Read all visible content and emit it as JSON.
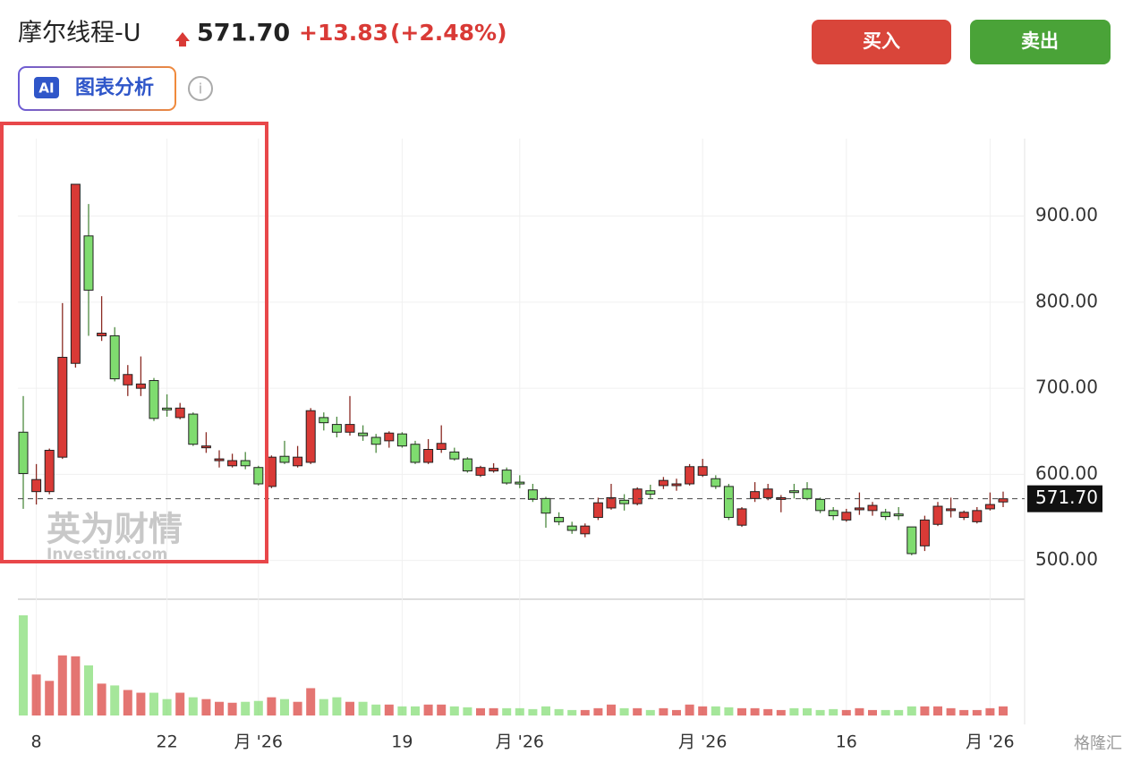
{
  "header": {
    "title": "摩尔线程-U",
    "price": "571.70",
    "change": "+13.83",
    "change_pct": "(+2.48%)",
    "ai_badge": "AI",
    "ai_button": "图表分析",
    "buy": "买入",
    "sell": "卖出"
  },
  "watermark": {
    "brand": "英为财情",
    "site": "Investing.com"
  },
  "source": "格隆汇",
  "chart_data": {
    "type": "candlestick",
    "categories": [
      null,
      "8",
      null,
      null,
      null,
      null,
      null,
      null,
      null,
      null,
      null,
      "22",
      null,
      null,
      null,
      null,
      null,
      null,
      "月 '26",
      null,
      null,
      null,
      null,
      null,
      null,
      null,
      null,
      null,
      null,
      "19",
      null,
      null,
      null,
      null,
      null,
      null,
      null,
      null,
      "月 '26",
      null,
      null,
      null,
      null,
      null,
      null,
      null,
      null,
      null,
      null,
      null,
      null,
      null,
      "月 '26",
      null,
      null,
      null,
      null,
      null,
      null,
      null,
      null,
      null,
      null,
      "16",
      null,
      null,
      null,
      null,
      null,
      null,
      null,
      null,
      null,
      null,
      "月 '26",
      null
    ],
    "open": [
      649,
      580,
      580,
      620,
      729,
      877,
      761,
      761,
      704,
      700,
      709,
      677,
      666,
      670,
      631,
      616,
      610,
      616,
      608,
      586,
      621,
      610,
      614,
      666,
      658,
      649,
      648,
      643,
      639,
      647,
      635,
      614,
      629,
      626,
      618,
      599,
      604,
      605,
      591,
      582,
      572,
      550,
      540,
      531,
      550,
      561,
      570,
      566,
      581,
      587,
      587,
      589,
      599,
      595,
      586,
      541,
      572,
      573,
      571,
      581,
      583,
      571,
      558,
      547,
      559,
      558,
      556,
      554,
      539,
      517,
      542,
      558,
      550,
      545,
      560,
      568
    ],
    "high": [
      691,
      612,
      630,
      799,
      937,
      914,
      807,
      771,
      727,
      737,
      712,
      693,
      683,
      672,
      649,
      628,
      624,
      626,
      610,
      622,
      639,
      633,
      677,
      672,
      667,
      691,
      657,
      647,
      650,
      649,
      639,
      641,
      657,
      631,
      620,
      610,
      613,
      608,
      599,
      589,
      574,
      556,
      545,
      543,
      573,
      589,
      577,
      585,
      588,
      597,
      595,
      612,
      618,
      599,
      589,
      562,
      591,
      589,
      576,
      589,
      591,
      573,
      562,
      560,
      579,
      568,
      560,
      562,
      539,
      552,
      568,
      573,
      558,
      562,
      579,
      580
    ],
    "low": [
      560,
      565,
      577,
      618,
      724,
      761,
      755,
      708,
      691,
      691,
      662,
      667,
      664,
      633,
      625,
      608,
      608,
      606,
      587,
      584,
      612,
      608,
      612,
      651,
      643,
      645,
      639,
      625,
      631,
      631,
      612,
      612,
      625,
      616,
      602,
      597,
      602,
      588,
      584,
      568,
      538,
      541,
      531,
      527,
      547,
      559,
      558,
      564,
      572,
      583,
      581,
      587,
      597,
      583,
      547,
      539,
      568,
      570,
      556,
      572,
      570,
      555,
      547,
      545,
      553,
      552,
      547,
      547,
      506,
      511,
      540,
      550,
      547,
      543,
      558,
      562
    ],
    "close": [
      601,
      594,
      628,
      736,
      937,
      814,
      764,
      711,
      716,
      705,
      665,
      675,
      677,
      635,
      633,
      618,
      616,
      610,
      589,
      620,
      614,
      620,
      674,
      660,
      649,
      658,
      645,
      635,
      648,
      633,
      614,
      629,
      636,
      618,
      604,
      608,
      607,
      590,
      589,
      571,
      555,
      545,
      535,
      540,
      567,
      573,
      566,
      583,
      577,
      593,
      589,
      609,
      609,
      586,
      550,
      560,
      580,
      583,
      573,
      579,
      572,
      558,
      552,
      556,
      561,
      564,
      551,
      552,
      508,
      547,
      563,
      560,
      556,
      558,
      565,
      571.7
    ],
    "volume": [
      110,
      45,
      38,
      66,
      65,
      55,
      35,
      33,
      28,
      25,
      25,
      18,
      25,
      20,
      18,
      15,
      14,
      15,
      16,
      20,
      18,
      15,
      30,
      18,
      20,
      15,
      15,
      12,
      12,
      10,
      10,
      12,
      12,
      10,
      9,
      8,
      8,
      8,
      8,
      7,
      10,
      7,
      6,
      6,
      8,
      12,
      8,
      8,
      6,
      8,
      6,
      12,
      10,
      10,
      9,
      8,
      8,
      7,
      6,
      8,
      8,
      6,
      7,
      6,
      8,
      6,
      6,
      6,
      10,
      10,
      10,
      8,
      6,
      6,
      8,
      10
    ],
    "up_color": "#d93a36",
    "down_color": "#7fdc6f",
    "ylim": [
      455,
      990
    ],
    "yticks": [
      {
        "value": 500,
        "label": "500.00"
      },
      {
        "value": 600,
        "label": "600.00"
      },
      {
        "value": 700,
        "label": "700.00"
      },
      {
        "value": 800,
        "label": "800.00"
      },
      {
        "value": 900,
        "label": "900.00"
      }
    ],
    "last_price": {
      "value": 571.7,
      "label": "571.70"
    },
    "grid": true
  }
}
